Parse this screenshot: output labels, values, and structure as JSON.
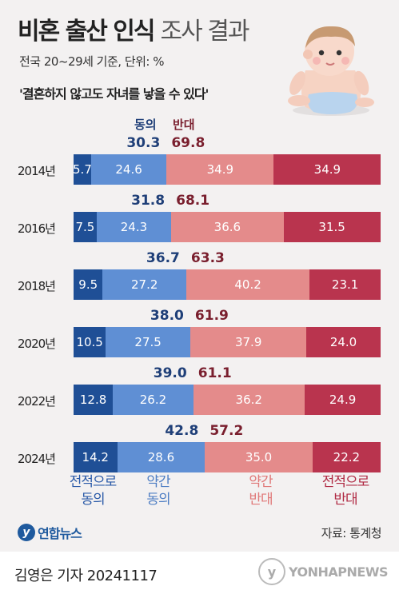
{
  "header": {
    "title": "비혼 출산 인식",
    "title_sub": "조사 결과",
    "subtitle": "전국 20~29세 기준, 단위: %",
    "question": "'결혼하지 않고도 자녀를 낳을 수 있다'"
  },
  "legend": {
    "agree_label": "동의",
    "disagree_label": "반대"
  },
  "categories": [
    {
      "line1": "전적으로",
      "line2": "동의"
    },
    {
      "line1": "약간",
      "line2": "동의"
    },
    {
      "line1": "약간",
      "line2": "반대"
    },
    {
      "line1": "전적으로",
      "line2": "반대"
    }
  ],
  "colors": {
    "strong_agree": "#1f4f96",
    "agree": "#5f8fd4",
    "disagree": "#e48b8b",
    "strong_disagree": "#b9344e",
    "agree_text": "#1f3f78",
    "disagree_text": "#7a1f2e",
    "cat_agree": "#2a5aa8",
    "cat_weak_agree": "#4f7fc4",
    "cat_weak_disagree": "#e07878",
    "cat_disagree": "#b02a44"
  },
  "chart_data": {
    "type": "bar",
    "stacked": true,
    "orientation": "horizontal",
    "categories": [
      "2014년",
      "2016년",
      "2018년",
      "2020년",
      "2022년",
      "2024년"
    ],
    "series": [
      {
        "name": "전적으로 동의",
        "values": [
          5.7,
          7.5,
          9.5,
          10.5,
          12.8,
          14.2
        ]
      },
      {
        "name": "약간 동의",
        "values": [
          24.6,
          24.3,
          27.2,
          27.5,
          26.2,
          28.6
        ]
      },
      {
        "name": "약간 반대",
        "values": [
          34.9,
          36.6,
          40.2,
          37.9,
          36.2,
          35.0
        ]
      },
      {
        "name": "전적으로 반대",
        "values": [
          34.9,
          31.5,
          23.1,
          24.0,
          24.9,
          22.2
        ]
      }
    ],
    "agree_totals": [
      30.3,
      31.8,
      36.7,
      38.0,
      39.0,
      42.8
    ],
    "disagree_totals": [
      69.8,
      68.1,
      63.3,
      61.9,
      61.1,
      57.2
    ],
    "legend": [
      "동의",
      "반대"
    ],
    "ylim": [
      0,
      100
    ]
  },
  "display": {
    "agree_totals": [
      "30.3",
      "31.8",
      "36.7",
      "38.0",
      "39.0",
      "42.8"
    ],
    "disagree_totals": [
      "69.8",
      "68.1",
      "63.3",
      "61.9",
      "61.1",
      "57.2"
    ],
    "segment_labels": [
      [
        "5.7",
        "24.6",
        "34.9",
        "34.9"
      ],
      [
        "7.5",
        "24.3",
        "36.6",
        "31.5"
      ],
      [
        "9.5",
        "27.2",
        "40.2",
        "23.1"
      ],
      [
        "10.5",
        "27.5",
        "37.9",
        "24.0"
      ],
      [
        "12.8",
        "26.2",
        "36.2",
        "24.9"
      ],
      [
        "14.2",
        "28.6",
        "35.0",
        "22.2"
      ]
    ]
  },
  "footer": {
    "logo_text": "연합뉴스",
    "source": "자료: 통계청",
    "byline": "김영은 기자  20241117",
    "watermark": "YONHAPNEWS"
  }
}
